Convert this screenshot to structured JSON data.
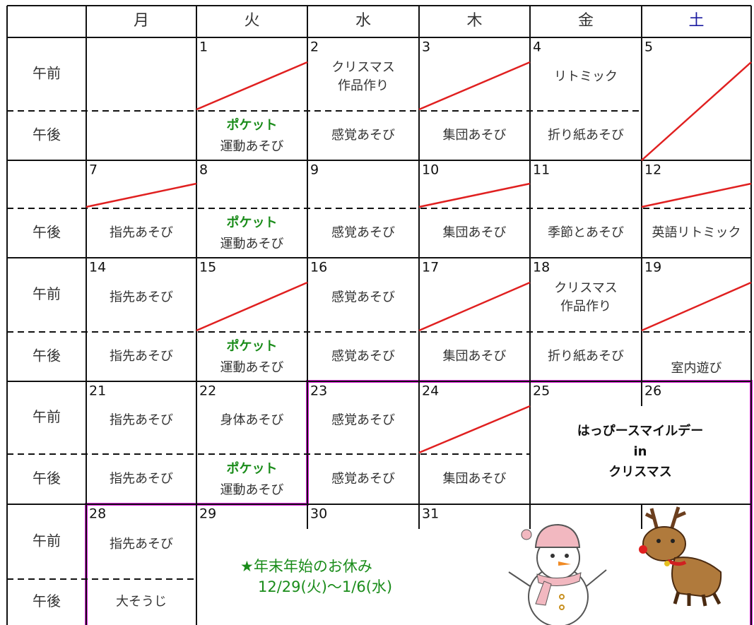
{
  "header": {
    "days": [
      "月",
      "火",
      "水",
      "木",
      "金",
      "土"
    ]
  },
  "weeks": [
    {
      "am_label": "午前",
      "pm_label": "午後",
      "days": [
        {},
        {
          "date": "1",
          "pm_note": "ポケット",
          "pm": [
            "運動あそび"
          ]
        },
        {
          "date": "2",
          "am": [
            "クリスマス",
            "作品作り"
          ],
          "pm": [
            "感覚あそび"
          ]
        },
        {
          "date": "3",
          "pm": [
            "集団あそび"
          ]
        },
        {
          "date": "4",
          "am": [
            "リトミック"
          ],
          "pm": [
            "折り紙あそび"
          ]
        },
        {
          "date": "5"
        }
      ]
    },
    {
      "pm_label": "午後",
      "days": [
        {
          "date": "7",
          "pm": [
            "指先あそび"
          ]
        },
        {
          "date": "8",
          "pm_note": "ポケット",
          "pm": [
            "運動あそび"
          ]
        },
        {
          "date": "9",
          "pm": [
            "感覚あそび"
          ]
        },
        {
          "date": "10",
          "pm": [
            "集団あそび"
          ]
        },
        {
          "date": "11",
          "pm": [
            "季節とあそび"
          ]
        },
        {
          "date": "12",
          "pm": [
            "英語リトミック"
          ]
        }
      ]
    },
    {
      "am_label": "午前",
      "pm_label": "午後",
      "days": [
        {
          "date": "14",
          "am": [
            "指先あそび"
          ],
          "pm": [
            "指先あそび"
          ]
        },
        {
          "date": "15",
          "pm_note": "ポケット",
          "pm": [
            "運動あそび"
          ]
        },
        {
          "date": "16",
          "am": [
            "感覚あそび"
          ],
          "pm": [
            "感覚あそび"
          ]
        },
        {
          "date": "17",
          "pm": [
            "集団あそび"
          ]
        },
        {
          "date": "18",
          "am": [
            "クリスマス",
            "作品作り"
          ],
          "pm": [
            "折り紙あそび"
          ]
        },
        {
          "date": "19",
          "pm_low": [
            "室内遊び"
          ]
        }
      ]
    },
    {
      "am_label": "午前",
      "pm_label": "午後",
      "event": [
        "はっぴースマイルデー",
        "in",
        "クリスマス"
      ],
      "days": [
        {
          "date": "21",
          "am": [
            "指先あそび"
          ],
          "pm": [
            "指先あそび"
          ]
        },
        {
          "date": "22",
          "am": [
            "身体あそび"
          ],
          "pm_note": "ポケット",
          "pm": [
            "運動あそび"
          ]
        },
        {
          "date": "23",
          "am": [
            "感覚あそび"
          ],
          "pm": [
            "感覚あそび"
          ]
        },
        {
          "date": "24",
          "pm": [
            "集団あそび"
          ]
        },
        {
          "date": "25"
        },
        {
          "date": "26"
        }
      ]
    },
    {
      "am_label": "午前",
      "pm_label": "午後",
      "notice": [
        "★年末年始のお休み",
        "12/29(火)～1/6(水)"
      ],
      "days": [
        {
          "date": "28",
          "am": [
            "指先あそび"
          ],
          "pm": [
            "大そうじ"
          ]
        },
        {
          "date": "29"
        },
        {
          "date": "30"
        },
        {
          "date": "31"
        },
        {},
        {}
      ]
    }
  ]
}
